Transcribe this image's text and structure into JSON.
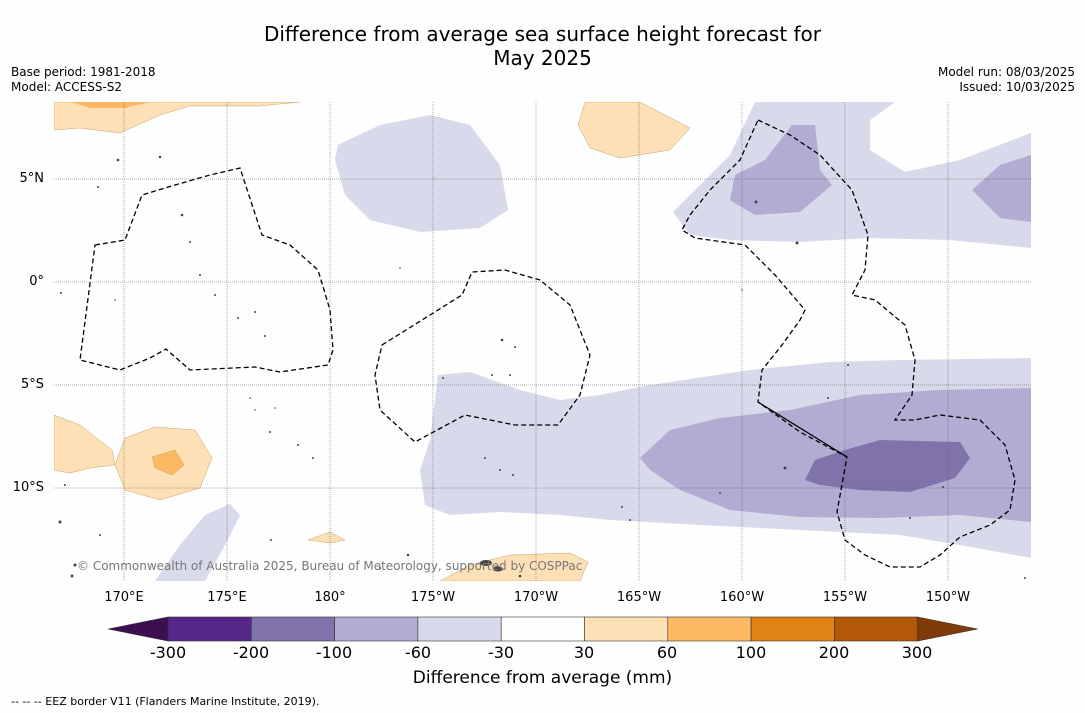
{
  "title_line1": "Difference from average sea surface height forecast for",
  "title_line2": "May 2025",
  "base_period": "Base period: 1981-2018",
  "model": "Model: ACCESS-S2",
  "model_run": "Model run: 08/03/2025",
  "issued": "Issued: 10/03/2025",
  "lat_labels": [
    "5°N",
    "0°",
    "5°S",
    "10°S"
  ],
  "lon_labels": [
    "170°E",
    "175°E",
    "180°",
    "175°W",
    "170°W",
    "165°W",
    "160°W",
    "155°W",
    "150°W"
  ],
  "copyright": "© Commonwealth of Australia 2025, Bureau of Meteorology, supported by COSPPac",
  "colorbar": {
    "title": "Difference from average (mm)",
    "ticks": [
      "-300",
      "-200",
      "-100",
      "-60",
      "-30",
      "30",
      "60",
      "100",
      "200",
      "300"
    ],
    "colors": [
      "#3b0f52",
      "#542788",
      "#8073ac",
      "#b2abd2",
      "#d8daeb",
      "#fefefe",
      "#fee0b6",
      "#fdb863",
      "#e08214",
      "#b35806",
      "#7f3b08"
    ]
  },
  "footnote": "-- -- -- EEZ border V11 (Flanders Marine Institute, 2019)."
}
